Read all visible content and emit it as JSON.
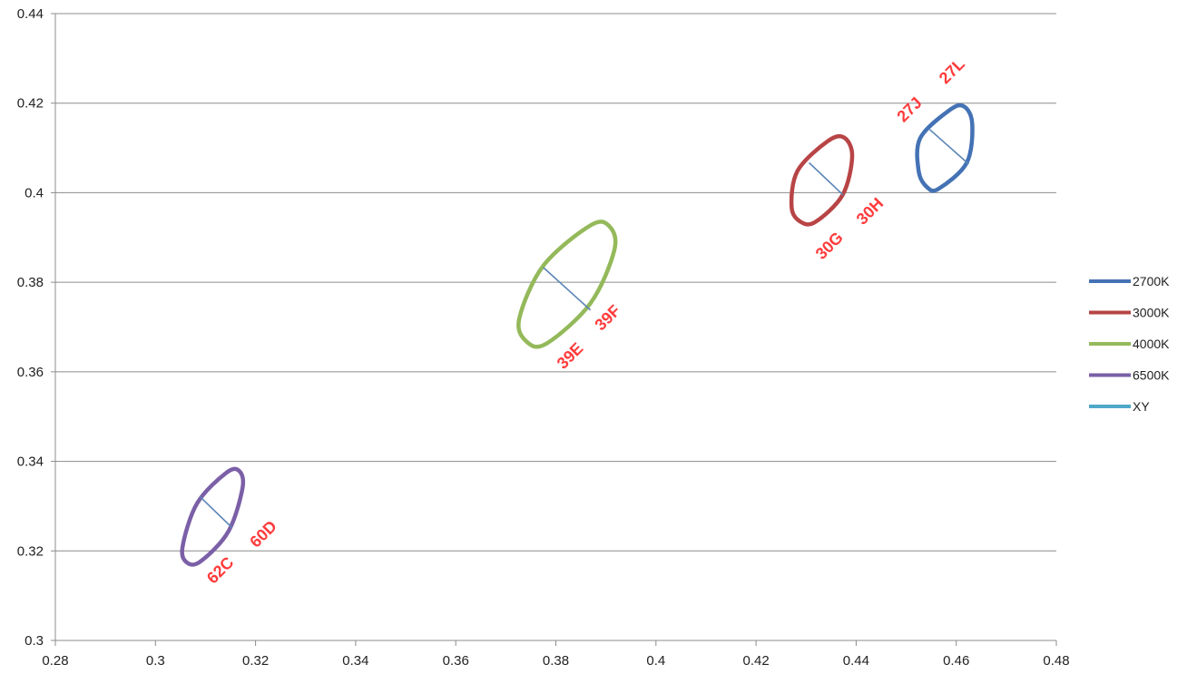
{
  "chart_data": {
    "type": "scatter",
    "title": "",
    "xlabel": "",
    "ylabel": "",
    "xlim": [
      0.28,
      0.48
    ],
    "ylim": [
      0.3,
      0.44
    ],
    "x_ticks": [
      "0.28",
      "0.3",
      "0.32",
      "0.34",
      "0.36",
      "0.38",
      "0.4",
      "0.42",
      "0.44",
      "0.46",
      "0.48"
    ],
    "y_ticks": [
      "0.3",
      "0.32",
      "0.34",
      "0.36",
      "0.38",
      "0.4",
      "0.42",
      "0.44"
    ],
    "grid": "horizontal",
    "legend_position": "right",
    "series": [
      {
        "name": "2700K",
        "color": "#4472b5",
        "shape": "ellipse",
        "points": [
          [
            0.4565,
            0.4009
          ],
          [
            0.4621,
            0.4067
          ],
          [
            0.4632,
            0.4154
          ],
          [
            0.4615,
            0.4193
          ],
          [
            0.4586,
            0.4184
          ],
          [
            0.4528,
            0.4122
          ],
          [
            0.4525,
            0.4048
          ],
          [
            0.4542,
            0.4012
          ]
        ]
      },
      {
        "name": "3000K",
        "color": "#b84446",
        "shape": "ellipse",
        "points": [
          [
            0.4319,
            0.3935
          ],
          [
            0.4373,
            0.3995
          ],
          [
            0.4392,
            0.4081
          ],
          [
            0.4376,
            0.4123
          ],
          [
            0.4343,
            0.4115
          ],
          [
            0.4283,
            0.4049
          ],
          [
            0.4271,
            0.3968
          ],
          [
            0.4289,
            0.3935
          ]
        ]
      },
      {
        "name": "4000K",
        "color": "#94b95a",
        "shape": "ellipse",
        "points": [
          [
            0.3781,
            0.3663
          ],
          [
            0.3869,
            0.3753
          ],
          [
            0.3917,
            0.3872
          ],
          [
            0.3907,
            0.3925
          ],
          [
            0.3869,
            0.3927
          ],
          [
            0.3775,
            0.3837
          ],
          [
            0.3727,
            0.3719
          ],
          [
            0.3741,
            0.3668
          ]
        ]
      },
      {
        "name": "6500K",
        "color": "#7b5fa7",
        "shape": "ellipse",
        "points": [
          [
            0.3092,
            0.3178
          ],
          [
            0.3146,
            0.3244
          ],
          [
            0.3174,
            0.3341
          ],
          [
            0.3167,
            0.3379
          ],
          [
            0.3141,
            0.3374
          ],
          [
            0.3083,
            0.3306
          ],
          [
            0.3054,
            0.3208
          ],
          [
            0.3064,
            0.3173
          ]
        ]
      },
      {
        "name": "XY",
        "color": "#4fa9c8",
        "shape": "line",
        "segments": [
          [
            [
              0.4547,
              0.4141
            ],
            [
              0.4625,
              0.4064
            ]
          ],
          [
            [
              0.4306,
              0.4067
            ],
            [
              0.4374,
              0.3995
            ]
          ],
          [
            [
              0.3775,
              0.3833
            ],
            [
              0.3869,
              0.3738
            ]
          ],
          [
            [
              0.3089,
              0.3321
            ],
            [
              0.3153,
              0.3252
            ]
          ]
        ]
      }
    ],
    "annotations": [
      {
        "text": "27J",
        "x": 0.4508,
        "y": 0.4184
      },
      {
        "text": "27L",
        "x": 0.4593,
        "y": 0.427
      },
      {
        "text": "30G",
        "x": 0.4348,
        "y": 0.388
      },
      {
        "text": "30H",
        "x": 0.4429,
        "y": 0.3957
      },
      {
        "text": "39E",
        "x": 0.383,
        "y": 0.3634
      },
      {
        "text": "39F",
        "x": 0.3905,
        "y": 0.3719
      },
      {
        "text": "62C",
        "x": 0.3131,
        "y": 0.3155
      },
      {
        "text": "60D",
        "x": 0.3217,
        "y": 0.3236
      }
    ]
  }
}
